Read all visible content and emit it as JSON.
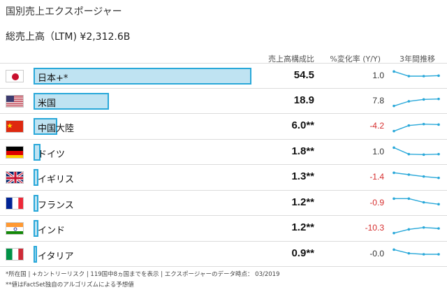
{
  "title": "国別売上エクスポージャー",
  "total": "総売上高（LTM) ¥2,312.6B",
  "headers": {
    "share": "売上高構成比",
    "change": "%変化率 (Y/Y)",
    "trend": "3年間推移"
  },
  "accent": "#29a8d9",
  "bar_fill": "#bfe3f2",
  "negative_color": "#d62e2e",
  "rows": [
    {
      "country": "日本+*",
      "flag": "japan-flag-icon",
      "share": 54.5,
      "share_text": "54.5",
      "change": "1.0",
      "negative": false,
      "trend": [
        3,
        2,
        2,
        2.1
      ]
    },
    {
      "country": "米国",
      "flag": "usa-flag-icon",
      "share": 18.9,
      "share_text": "18.9",
      "change": "7.8",
      "negative": false,
      "trend": [
        1,
        2,
        2.4,
        2.5
      ]
    },
    {
      "country": "中国大陸",
      "flag": "china-flag-icon",
      "share": 6.0,
      "share_text": "6.0**",
      "change": "-4.2",
      "negative": true,
      "trend": [
        1,
        2.2,
        2.5,
        2.4
      ]
    },
    {
      "country": "ドイツ",
      "flag": "germany-flag-icon",
      "share": 1.8,
      "share_text": "1.8**",
      "change": "1.0",
      "negative": false,
      "trend": [
        3,
        1.6,
        1.5,
        1.6
      ]
    },
    {
      "country": "イギリス",
      "flag": "uk-flag-icon",
      "share": 1.3,
      "share_text": "1.3**",
      "change": "-1.4",
      "negative": true,
      "trend": [
        3,
        2.6,
        2.2,
        1.9
      ]
    },
    {
      "country": "フランス",
      "flag": "france-flag-icon",
      "share": 1.2,
      "share_text": "1.2**",
      "change": "-0.9",
      "negative": true,
      "trend": [
        3,
        3,
        2.2,
        1.8
      ]
    },
    {
      "country": "インド",
      "flag": "india-flag-icon",
      "share": 1.2,
      "share_text": "1.2**",
      "change": "-10.3",
      "negative": true,
      "trend": [
        1,
        1.8,
        2.2,
        2
      ]
    },
    {
      "country": "イタリア",
      "flag": "italy-flag-icon",
      "share": 0.9,
      "share_text": "0.9**",
      "change": "-0.0",
      "negative": false,
      "trend": [
        3,
        2.2,
        2,
        2
      ]
    }
  ],
  "footnotes": {
    "line1": "*所在国 | +カントリーリスク | 119国中8ヵ国までを表示 | エクスポージャーのデータ時点： 03/2019",
    "line2": "**値はFactSet独自のアルゴリズムによる予想値"
  }
}
